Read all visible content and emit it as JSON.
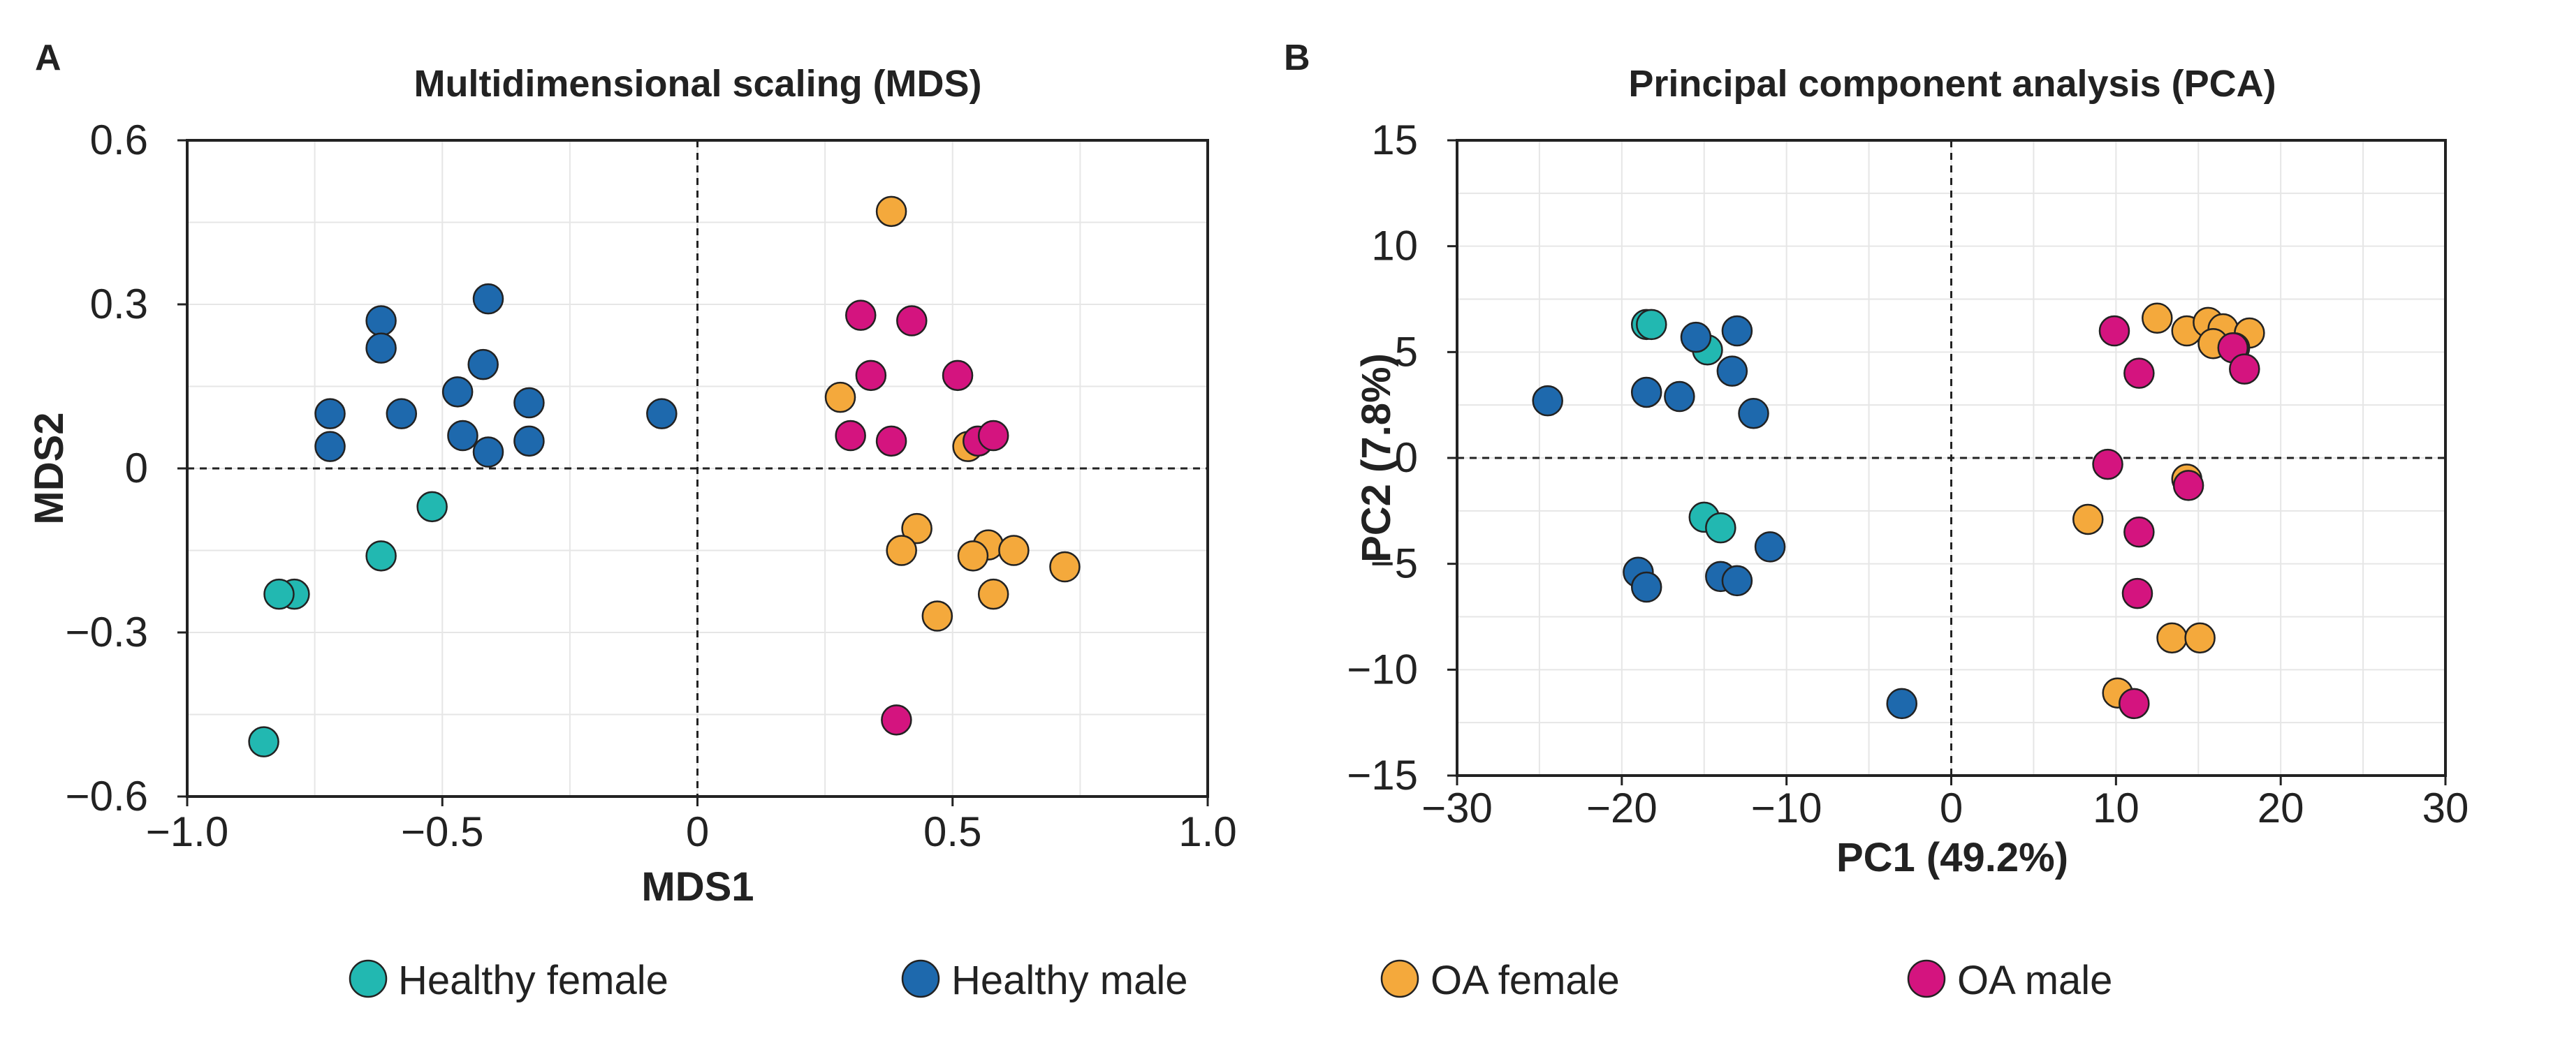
{
  "legend": [
    {
      "key": "healthy_female",
      "label": "Healthy female",
      "color": "#22b8b1"
    },
    {
      "key": "healthy_male",
      "label": "Healthy male",
      "color": "#1e69ad"
    },
    {
      "key": "oa_female",
      "label": "OA female",
      "color": "#f4a93c"
    },
    {
      "key": "oa_male",
      "label": "OA male",
      "color": "#d4147f"
    }
  ],
  "chart_data": [
    {
      "panel": "A",
      "type": "scatter",
      "title": "Multidimensional scaling (MDS)",
      "xlabel": "MDS1",
      "ylabel": "MDS2",
      "xlim": [
        -1.0,
        1.0
      ],
      "ylim": [
        -0.6,
        0.6
      ],
      "xticks": [
        -1.0,
        -0.5,
        0,
        0.5,
        1.0
      ],
      "xtick_labels": [
        "−1.0",
        "−0.5",
        "0",
        "0.5",
        "1.0"
      ],
      "yticks": [
        -0.6,
        -0.3,
        0,
        0.3,
        0.6
      ],
      "ytick_labels": [
        "−0.6",
        "−0.3",
        "0",
        "0.3",
        "0.6"
      ],
      "grid": true,
      "zero_lines": true,
      "series": [
        {
          "name": "Healthy female",
          "key": "healthy_female",
          "x": [
            -0.52,
            -0.62,
            -0.79,
            -0.82,
            -0.85
          ],
          "y": [
            -0.07,
            -0.16,
            -0.23,
            -0.23,
            -0.5
          ]
        },
        {
          "name": "Healthy male",
          "key": "healthy_male",
          "x": [
            -0.62,
            -0.62,
            -0.41,
            -0.72,
            -0.58,
            -0.47,
            -0.42,
            -0.33,
            -0.72,
            -0.46,
            -0.41,
            -0.33,
            -0.07
          ],
          "y": [
            0.27,
            0.22,
            0.31,
            0.1,
            0.1,
            0.14,
            0.19,
            0.12,
            0.04,
            0.06,
            0.03,
            0.05,
            0.1
          ]
        },
        {
          "name": "OA female",
          "key": "oa_female",
          "x": [
            0.38,
            0.28,
            0.53,
            0.43,
            0.4,
            0.57,
            0.54,
            0.62,
            0.72,
            0.47,
            0.58
          ],
          "y": [
            0.47,
            0.13,
            0.04,
            -0.11,
            -0.15,
            -0.14,
            -0.16,
            -0.15,
            -0.18,
            -0.27,
            -0.23
          ]
        },
        {
          "name": "OA male",
          "key": "oa_male",
          "x": [
            0.32,
            0.42,
            0.34,
            0.51,
            0.3,
            0.38,
            0.55,
            0.58,
            0.39
          ],
          "y": [
            0.28,
            0.27,
            0.17,
            0.17,
            0.06,
            0.05,
            0.05,
            0.06,
            -0.46
          ]
        }
      ]
    },
    {
      "panel": "B",
      "type": "scatter",
      "title": "Principal component analysis (PCA)",
      "xlabel": "PC1 (49.2%)",
      "ylabel": "PC2 (7.8%)",
      "xlim": [
        -30,
        30
      ],
      "ylim": [
        -15,
        15
      ],
      "xticks": [
        -30,
        -20,
        -10,
        0,
        10,
        20,
        30
      ],
      "xtick_labels": [
        "−30",
        "−20",
        "−10",
        "0",
        "10",
        "20",
        "30"
      ],
      "yticks": [
        -15,
        -10,
        -5,
        0,
        5,
        10,
        15
      ],
      "ytick_labels": [
        "−15",
        "−10",
        "−5",
        "0",
        "5",
        "10",
        "15"
      ],
      "grid": true,
      "zero_lines": true,
      "series": [
        {
          "name": "Healthy female",
          "key": "healthy_female",
          "x": [
            -18.5,
            -18.2,
            -14.8,
            -15.0,
            -14.0
          ],
          "y": [
            6.3,
            6.3,
            5.1,
            -2.8,
            -3.3
          ]
        },
        {
          "name": "Healthy male",
          "key": "healthy_male",
          "x": [
            -24.5,
            -18.5,
            -16.5,
            -15.5,
            -13.0,
            -13.3,
            -12.0,
            -19.0,
            -18.5,
            -14.0,
            -13.0,
            -11.0,
            -3.0
          ],
          "y": [
            2.7,
            3.1,
            2.9,
            5.7,
            6.0,
            4.1,
            2.1,
            -5.4,
            -6.1,
            -5.6,
            -5.8,
            -4.2,
            -11.6
          ]
        },
        {
          "name": "OA female",
          "key": "oa_female",
          "x": [
            12.5,
            14.3,
            15.6,
            16.5,
            18.1,
            15.9,
            17.2,
            14.3,
            8.3,
            13.4,
            15.1,
            10.1
          ],
          "y": [
            6.6,
            6.0,
            6.4,
            6.1,
            5.9,
            5.4,
            5.2,
            -1.0,
            -2.9,
            -8.5,
            -8.5,
            -11.1
          ]
        },
        {
          "name": "OA male",
          "key": "oa_male",
          "x": [
            9.9,
            11.4,
            17.1,
            17.8,
            9.5,
            14.4,
            11.4,
            11.3,
            11.1
          ],
          "y": [
            6.0,
            4.0,
            5.2,
            4.2,
            -0.3,
            -1.3,
            -3.5,
            -6.4,
            -11.6
          ]
        }
      ]
    }
  ]
}
